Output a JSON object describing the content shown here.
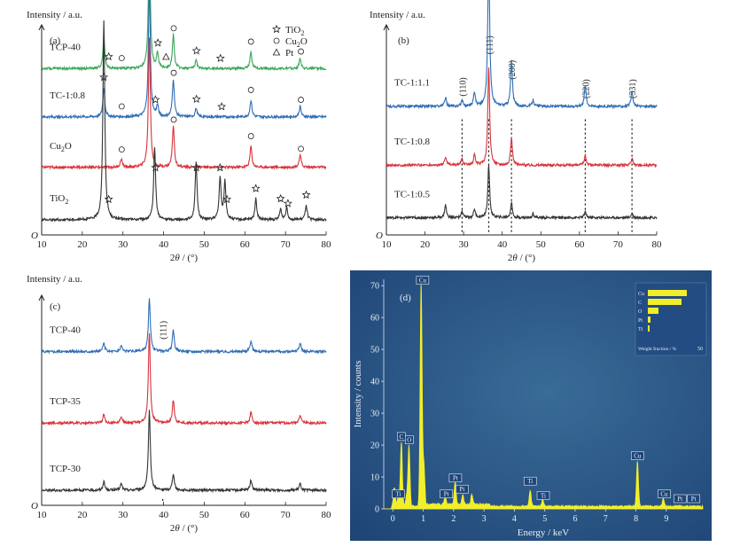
{
  "chart_data": [
    {
      "id": "a",
      "type": "line",
      "panel_label": "(a)",
      "ylabel": "Intensity / a.u.",
      "xlabel": "2θ / (°)",
      "zero_label": "O",
      "xlim": [
        10,
        80
      ],
      "xticks": [
        10,
        20,
        30,
        40,
        50,
        60,
        70,
        80
      ],
      "legend": [
        {
          "symbol": "☆",
          "label": "TiO",
          "sub": "2",
          "after": ""
        },
        {
          "symbol": "○",
          "label": "Cu",
          "sub": "2",
          "after": "O"
        },
        {
          "symbol": "△",
          "label": "Pt",
          "sub": "",
          "after": ""
        }
      ],
      "series": [
        {
          "name": "TCP-40",
          "color": "#3aa65a",
          "offset": 0.78,
          "peaks": [
            [
              25.3,
              0.15
            ],
            [
              36.5,
              0.62
            ],
            [
              38.5,
              0.07
            ],
            [
              42.4,
              0.16
            ],
            [
              48.0,
              0.04
            ],
            [
              61.5,
              0.08
            ],
            [
              73.6,
              0.05
            ]
          ],
          "markers": [
            [
              26.5,
              "star"
            ],
            [
              29.7,
              "circle"
            ],
            [
              38.6,
              "star"
            ],
            [
              40.6,
              "triangle"
            ],
            [
              42.5,
              "circle"
            ],
            [
              48.1,
              "star"
            ],
            [
              54.0,
              "star"
            ],
            [
              61.5,
              "circle"
            ],
            [
              73.8,
              "circle"
            ]
          ]
        },
        {
          "name": "TC-1:0.8",
          "color": "#2e6db4",
          "offset": 0.55,
          "peaks": [
            [
              25.3,
              0.14
            ],
            [
              36.5,
              0.62
            ],
            [
              38.5,
              0.05
            ],
            [
              42.4,
              0.18
            ],
            [
              48.0,
              0.04
            ],
            [
              61.5,
              0.08
            ],
            [
              73.6,
              0.05
            ]
          ],
          "markers": [
            [
              25.3,
              "star"
            ],
            [
              29.7,
              "circle"
            ],
            [
              38.0,
              "star"
            ],
            [
              42.5,
              "circle"
            ],
            [
              48.1,
              "star"
            ],
            [
              54.3,
              "star"
            ],
            [
              61.5,
              "circle"
            ],
            [
              73.8,
              "circle"
            ]
          ]
        },
        {
          "name": "Cu",
          "name_sub": "2",
          "name_after": "O",
          "color": "#d8333c",
          "offset": 0.31,
          "peaks": [
            [
              29.6,
              0.04
            ],
            [
              36.5,
              0.62
            ],
            [
              42.4,
              0.2
            ],
            [
              61.5,
              0.1
            ],
            [
              73.6,
              0.06
            ]
          ],
          "markers": [
            [
              29.7,
              "circle"
            ],
            [
              42.5,
              "circle"
            ],
            [
              61.5,
              "circle"
            ],
            [
              73.8,
              "circle"
            ]
          ]
        },
        {
          "name": "TiO",
          "name_sub": "2",
          "name_after": "",
          "color": "#333333",
          "offset": 0.06,
          "peaks": [
            [
              25.3,
              0.95
            ],
            [
              37.8,
              0.35
            ],
            [
              48.0,
              0.27
            ],
            [
              53.9,
              0.2
            ],
            [
              55.1,
              0.18
            ],
            [
              62.7,
              0.1
            ],
            [
              68.8,
              0.05
            ],
            [
              70.3,
              0.06
            ],
            [
              75.1,
              0.07
            ]
          ],
          "markers": [
            [
              26.5,
              "star"
            ],
            [
              38.0,
              "star"
            ],
            [
              48.1,
              "star"
            ],
            [
              53.9,
              "star"
            ],
            [
              55.6,
              "star"
            ],
            [
              62.7,
              "star"
            ],
            [
              68.8,
              "star"
            ],
            [
              70.6,
              "star"
            ],
            [
              75.1,
              "star"
            ]
          ]
        }
      ]
    },
    {
      "id": "b",
      "type": "line",
      "panel_label": "(b)",
      "ylabel": "Intensity / a.u.",
      "xlabel": "2θ / (°)",
      "zero_label": "O",
      "xlim": [
        10,
        80
      ],
      "xticks": [
        10,
        20,
        30,
        40,
        50,
        60,
        70,
        80
      ],
      "reference_lines": [
        {
          "x": 29.6,
          "label": "(110)"
        },
        {
          "x": 36.5,
          "label": "(111)"
        },
        {
          "x": 42.4,
          "label": "(200)"
        },
        {
          "x": 61.5,
          "label": "(220)"
        },
        {
          "x": 73.6,
          "label": "(331)"
        }
      ],
      "series": [
        {
          "name": "TC-1:1.1",
          "color": "#2e6db4",
          "offset": 0.6,
          "peaks": [
            [
              25.3,
              0.04
            ],
            [
              29.6,
              0.03
            ],
            [
              32.8,
              0.07
            ],
            [
              36.5,
              0.75
            ],
            [
              42.4,
              0.22
            ],
            [
              48.0,
              0.03
            ],
            [
              61.5,
              0.1
            ],
            [
              73.6,
              0.07
            ]
          ]
        },
        {
          "name": "TC-1:0.8",
          "color": "#d8333c",
          "offset": 0.32,
          "peaks": [
            [
              25.3,
              0.04
            ],
            [
              29.6,
              0.03
            ],
            [
              32.8,
              0.05
            ],
            [
              36.5,
              0.47
            ],
            [
              42.4,
              0.13
            ],
            [
              61.5,
              0.05
            ],
            [
              73.6,
              0.03
            ]
          ]
        },
        {
          "name": "TC-1:0.5",
          "color": "#333333",
          "offset": 0.07,
          "peaks": [
            [
              25.3,
              0.06
            ],
            [
              29.6,
              0.03
            ],
            [
              32.8,
              0.04
            ],
            [
              36.5,
              0.25
            ],
            [
              42.4,
              0.07
            ],
            [
              48.0,
              0.02
            ],
            [
              61.5,
              0.03
            ],
            [
              73.6,
              0.02
            ]
          ]
        }
      ]
    },
    {
      "id": "c",
      "type": "line",
      "panel_label": "(c)",
      "ylabel": "Intensity / a.u.",
      "xlabel": "2θ / (°)",
      "zero_label": "O",
      "xlim": [
        10,
        80
      ],
      "xticks": [
        10,
        20,
        30,
        40,
        50,
        60,
        70,
        80
      ],
      "reference_lines": [
        {
          "x": 39.8,
          "label": "(111)"
        }
      ],
      "series": [
        {
          "name": "TCP-40",
          "color": "#2e6db4",
          "offset": 0.72,
          "peaks": [
            [
              25.3,
              0.04
            ],
            [
              29.6,
              0.03
            ],
            [
              36.5,
              0.25
            ],
            [
              42.4,
              0.1
            ],
            [
              61.5,
              0.05
            ],
            [
              73.6,
              0.04
            ]
          ]
        },
        {
          "name": "TCP-35",
          "color": "#d8333c",
          "offset": 0.38,
          "peaks": [
            [
              25.3,
              0.04
            ],
            [
              29.6,
              0.03
            ],
            [
              36.5,
              0.43
            ],
            [
              42.4,
              0.11
            ],
            [
              61.5,
              0.05
            ],
            [
              73.6,
              0.04
            ]
          ]
        },
        {
          "name": "TCP-30",
          "color": "#333333",
          "offset": 0.06,
          "peaks": [
            [
              25.3,
              0.04
            ],
            [
              29.6,
              0.03
            ],
            [
              36.5,
              0.38
            ],
            [
              42.4,
              0.08
            ],
            [
              61.5,
              0.05
            ],
            [
              73.6,
              0.03
            ]
          ]
        }
      ]
    },
    {
      "id": "d",
      "type": "line",
      "panel_label": "(d)",
      "ylabel": "Intensity / counts",
      "xlabel": "Energy / keV",
      "xlim": [
        -0.3,
        10.2
      ],
      "ylim": [
        0,
        72
      ],
      "xticks": [
        0,
        1,
        2,
        3,
        4,
        5,
        6,
        7,
        8,
        9
      ],
      "yticks": [
        0,
        10,
        20,
        30,
        40,
        50,
        60,
        70
      ],
      "background_color": "#1f4577",
      "trace_color": "#f2ee2a",
      "peaks": [
        [
          0.05,
          6
        ],
        [
          0.18,
          3
        ],
        [
          0.28,
          20
        ],
        [
          0.45,
          3
        ],
        [
          0.53,
          19
        ],
        [
          0.93,
          70
        ],
        [
          1.02,
          13
        ],
        [
          1.72,
          2.5
        ],
        [
          2.05,
          7
        ],
        [
          2.3,
          3
        ],
        [
          2.6,
          3
        ],
        [
          4.52,
          5
        ],
        [
          4.93,
          2
        ],
        [
          8.05,
          14
        ],
        [
          8.9,
          2.5
        ]
      ],
      "peak_labels": [
        {
          "x": 0.28,
          "y": 22,
          "text": "C"
        },
        {
          "x": 0.54,
          "y": 21,
          "text": "O"
        },
        {
          "x": 0.18,
          "y": 4,
          "text": "Ti"
        },
        {
          "x": 0.98,
          "y": 71,
          "text": "Cu"
        },
        {
          "x": 1.76,
          "y": 4,
          "text": "Pt"
        },
        {
          "x": 2.06,
          "y": 9,
          "text": "Pt"
        },
        {
          "x": 2.28,
          "y": 5.5,
          "text": "Pt"
        },
        {
          "x": 4.52,
          "y": 8,
          "text": "Ti"
        },
        {
          "x": 4.95,
          "y": 3.5,
          "text": "Ti"
        },
        {
          "x": 8.05,
          "y": 16,
          "text": "Cu"
        },
        {
          "x": 8.93,
          "y": 4,
          "text": "Cu"
        },
        {
          "x": 9.45,
          "y": 2.5,
          "text": "Pt"
        },
        {
          "x": 9.9,
          "y": 2.5,
          "text": "Pt"
        }
      ],
      "inset": {
        "xlabel": "Weight fraction / %",
        "xmax": 50,
        "xmax_label": "50",
        "categories": [
          "Cu",
          "C",
          "O",
          "Pt",
          "Ti"
        ],
        "values": [
          44,
          38,
          12,
          3,
          2
        ]
      }
    }
  ]
}
